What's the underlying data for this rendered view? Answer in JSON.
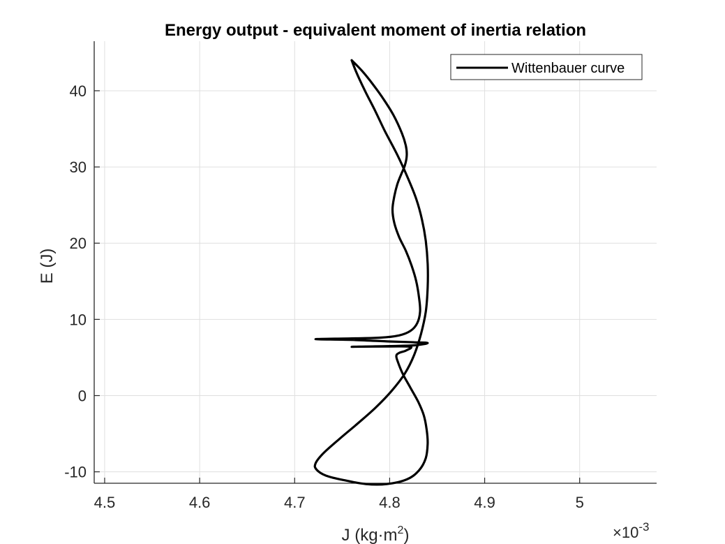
{
  "chart_data": {
    "type": "line",
    "title": "Energy output - equivalent moment of inertia relation",
    "xlabel": "J (kg·m",
    "xlabel_sup": "2",
    "xlabel_end": ")",
    "ylabel": "E (J)",
    "x_exponent": {
      "base": "×10",
      "power": "-3"
    },
    "xlim": [
      4.489,
      5.081
    ],
    "ylim": [
      -11.5,
      46.5
    ],
    "grid": true,
    "legend_position": "top-right",
    "x_ticks": [
      {
        "value": 4.5,
        "label": "4.5"
      },
      {
        "value": 4.6,
        "label": "4.6"
      },
      {
        "value": 4.7,
        "label": "4.7"
      },
      {
        "value": 4.8,
        "label": "4.8"
      },
      {
        "value": 4.9,
        "label": "4.9"
      },
      {
        "value": 5.0,
        "label": "5"
      }
    ],
    "y_ticks": [
      {
        "value": -10,
        "label": "-10"
      },
      {
        "value": 0,
        "label": "0"
      },
      {
        "value": 10,
        "label": "10"
      },
      {
        "value": 20,
        "label": "20"
      },
      {
        "value": 30,
        "label": "30"
      },
      {
        "value": 40,
        "label": "40"
      }
    ],
    "series": [
      {
        "name": "Wittenbauer curve",
        "color": "#000000",
        "points": [
          [
            4.76,
            44.0
          ],
          [
            4.771,
            42.6
          ],
          [
            4.782,
            40.9
          ],
          [
            4.793,
            39.0
          ],
          [
            4.804,
            36.8
          ],
          [
            4.813,
            34.4
          ],
          [
            4.817,
            32.8
          ],
          [
            4.818,
            31.5
          ],
          [
            4.816,
            30.2
          ],
          [
            4.812,
            29.0
          ],
          [
            4.808,
            27.7
          ],
          [
            4.805,
            26.2
          ],
          [
            4.803,
            24.4
          ],
          [
            4.805,
            22.6
          ],
          [
            4.81,
            20.8
          ],
          [
            4.817,
            19.0
          ],
          [
            4.823,
            17.1
          ],
          [
            4.828,
            15.0
          ],
          [
            4.831,
            12.8
          ],
          [
            4.832,
            11.0
          ],
          [
            4.829,
            9.5
          ],
          [
            4.822,
            8.5
          ],
          [
            4.81,
            7.9
          ],
          [
            4.79,
            7.6
          ],
          [
            4.76,
            7.5
          ],
          [
            4.722,
            7.4
          ],
          [
            4.762,
            7.3
          ],
          [
            4.8,
            7.1
          ],
          [
            4.825,
            7.0
          ],
          [
            4.84,
            6.9
          ],
          [
            4.826,
            6.6
          ],
          [
            4.8,
            6.5
          ],
          [
            4.76,
            6.4
          ],
          [
            4.8,
            6.45
          ],
          [
            4.822,
            6.4
          ],
          [
            4.817,
            5.9
          ],
          [
            4.81,
            5.6
          ],
          [
            4.807,
            5.2
          ],
          [
            4.809,
            4.3
          ],
          [
            4.814,
            2.8
          ],
          [
            4.822,
            1.0
          ],
          [
            4.83,
            -0.8
          ],
          [
            4.836,
            -2.6
          ],
          [
            4.839,
            -4.5
          ],
          [
            4.84,
            -6.3
          ],
          [
            4.838,
            -8.2
          ],
          [
            4.831,
            -9.8
          ],
          [
            4.818,
            -11.0
          ],
          [
            4.797,
            -11.6
          ],
          [
            4.775,
            -11.6
          ],
          [
            4.752,
            -11.1
          ],
          [
            4.733,
            -10.5
          ],
          [
            4.723,
            -9.7
          ],
          [
            4.722,
            -8.9
          ],
          [
            4.73,
            -7.6
          ],
          [
            4.747,
            -5.7
          ],
          [
            4.766,
            -3.7
          ],
          [
            4.785,
            -1.6
          ],
          [
            4.802,
            0.6
          ],
          [
            4.816,
            2.9
          ],
          [
            4.826,
            5.4
          ],
          [
            4.833,
            8.1
          ],
          [
            4.838,
            11.0
          ],
          [
            4.84,
            14.2
          ],
          [
            4.84,
            17.3
          ],
          [
            4.838,
            20.3
          ],
          [
            4.834,
            23.1
          ],
          [
            4.828,
            25.8
          ],
          [
            4.819,
            28.6
          ],
          [
            4.808,
            31.6
          ],
          [
            4.795,
            34.7
          ],
          [
            4.785,
            37.3
          ],
          [
            4.774,
            40.0
          ],
          [
            4.765,
            42.4
          ],
          [
            4.76,
            44.0
          ]
        ]
      }
    ]
  }
}
